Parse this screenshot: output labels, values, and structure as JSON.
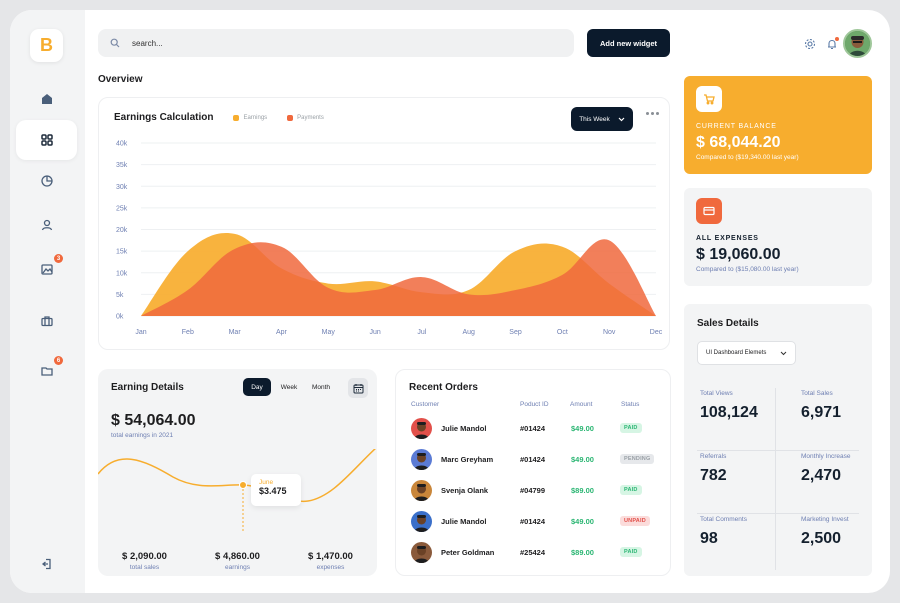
{
  "colors": {
    "accent_orange": "#f7ad2e",
    "accent_red": "#f0693d",
    "dark_navy": "#0b1a2c",
    "paid_green": "#2bb673",
    "pending_gray": "#9aa0a6",
    "unpaid_red": "#e2504a"
  },
  "sidebar": {
    "logo": "B",
    "items": [
      {
        "icon": "home-icon"
      },
      {
        "icon": "grid-icon",
        "active": true
      },
      {
        "icon": "pie-chart-icon"
      },
      {
        "icon": "user-icon"
      },
      {
        "icon": "image-icon",
        "badge": "3"
      },
      {
        "icon": "briefcase-icon"
      },
      {
        "icon": "folder-icon",
        "badge": "6"
      }
    ],
    "logout_icon": "logout-icon"
  },
  "header": {
    "search_placeholder": "search...",
    "add_button": "Add new widget",
    "settings_icon": "gear-icon",
    "notification_icon": "bell-icon"
  },
  "overview": {
    "title": "Overview"
  },
  "earnings_calc": {
    "title": "Earnings Calculation",
    "legend": [
      "Earnings",
      "Payments"
    ],
    "period_button": "This Week"
  },
  "chart_data": {
    "type": "area",
    "categories": [
      "Jan",
      "Feb",
      "Mar",
      "Apr",
      "May",
      "Jun",
      "Jul",
      "Aug",
      "Sep",
      "Oct",
      "Nov",
      "Dec"
    ],
    "series": [
      {
        "name": "Earnings",
        "color": "#f7ad2e",
        "values": [
          0,
          15000,
          19000,
          11000,
          7500,
          8000,
          5500,
          6000,
          15000,
          16000,
          7500,
          0
        ]
      },
      {
        "name": "Payments",
        "color": "#f0693d",
        "values": [
          0,
          6000,
          15500,
          16000,
          6500,
          6000,
          9000,
          5000,
          6000,
          9500,
          17500,
          0
        ]
      }
    ],
    "yticks": [
      "0k",
      "5k",
      "10k",
      "15k",
      "20k",
      "25k",
      "30k",
      "35k",
      "40k"
    ],
    "ylim": [
      0,
      40000
    ]
  },
  "earning_details": {
    "title": "Earning Details",
    "tabs": [
      "Day",
      "Week",
      "Month"
    ],
    "calendar_icon": "calendar-icon",
    "total": "$ 54,064.00",
    "total_sub": "total earnings in 2021",
    "tooltip_month": "June",
    "tooltip_value": "$3.475",
    "stats": [
      {
        "value": "$ 2,090.00",
        "label": "total sales"
      },
      {
        "value": "$ 4,860.00",
        "label": "earnings"
      },
      {
        "value": "$ 1,470.00",
        "label": "expenses"
      }
    ]
  },
  "orders": {
    "title": "Recent Orders",
    "headers": [
      "Customer",
      "Poduct ID",
      "Amount",
      "Status"
    ],
    "rows": [
      {
        "name": "Julie Mandol",
        "id": "#01424",
        "amount": "$49.00",
        "status": "PAID"
      },
      {
        "name": "Marc Greyham",
        "id": "#01424",
        "amount": "$49.00",
        "status": "PENDING"
      },
      {
        "name": "Svenja Olank",
        "id": "#04799",
        "amount": "$89.00",
        "status": "PAID"
      },
      {
        "name": "Julie Mandol",
        "id": "#01424",
        "amount": "$49.00",
        "status": "UNPAID"
      },
      {
        "name": "Peter Goldman",
        "id": "#25424",
        "amount": "$89.00",
        "status": "PAID"
      }
    ]
  },
  "balance": {
    "label": "CURRENT BALANCE",
    "value": "$ 68,044.20",
    "compare": "Compared to ($19,340.00 last year)",
    "icon": "cart-icon"
  },
  "expenses": {
    "label": "ALL EXPENSES",
    "value": "$ 19,060.00",
    "compare": "Compared to ($15,080.00 last year)",
    "icon": "credit-card-icon"
  },
  "sales": {
    "title": "Sales Details",
    "dropdown": "UI Dashboard Elemets",
    "stats": [
      {
        "label": "Total Views",
        "value": "108,124"
      },
      {
        "label": "Total Sales",
        "value": "6,971"
      },
      {
        "label": "Referrals",
        "value": "782"
      },
      {
        "label": "Monthly Increase",
        "value": "2,470"
      },
      {
        "label": "Total Comments",
        "value": "98"
      },
      {
        "label": "Marketing Invest",
        "value": "2,500"
      }
    ]
  }
}
